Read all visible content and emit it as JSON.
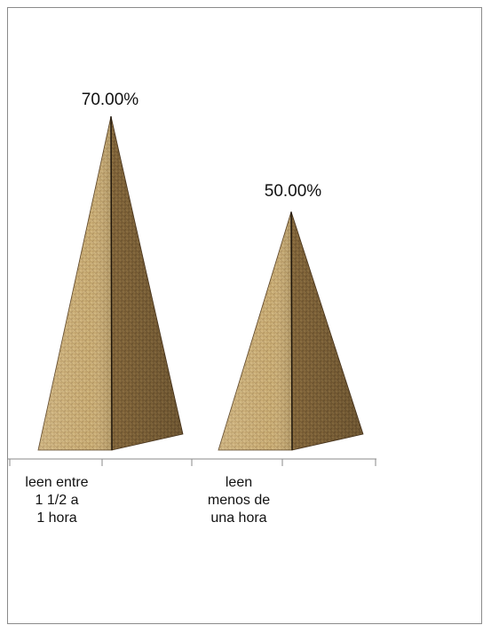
{
  "chart_data": {
    "type": "bar",
    "style": "3d-pyramid",
    "categories": [
      [
        "leen entre",
        "1  1/2    a",
        "1 hora"
      ],
      [
        "leen",
        "menos de",
        "una hora"
      ]
    ],
    "values": [
      0.7,
      0.5
    ],
    "data_labels": [
      "70.00%",
      "50.00%"
    ],
    "ylim": [
      0,
      0.8
    ],
    "grid": false,
    "legend": "none",
    "colors": {
      "light": "#c7aa72",
      "medium": "#9e7c49",
      "dark": "#6d512d",
      "shadow": "#4b3821",
      "axis": "#8a8a8a",
      "frame": "#8a8a8a"
    }
  }
}
